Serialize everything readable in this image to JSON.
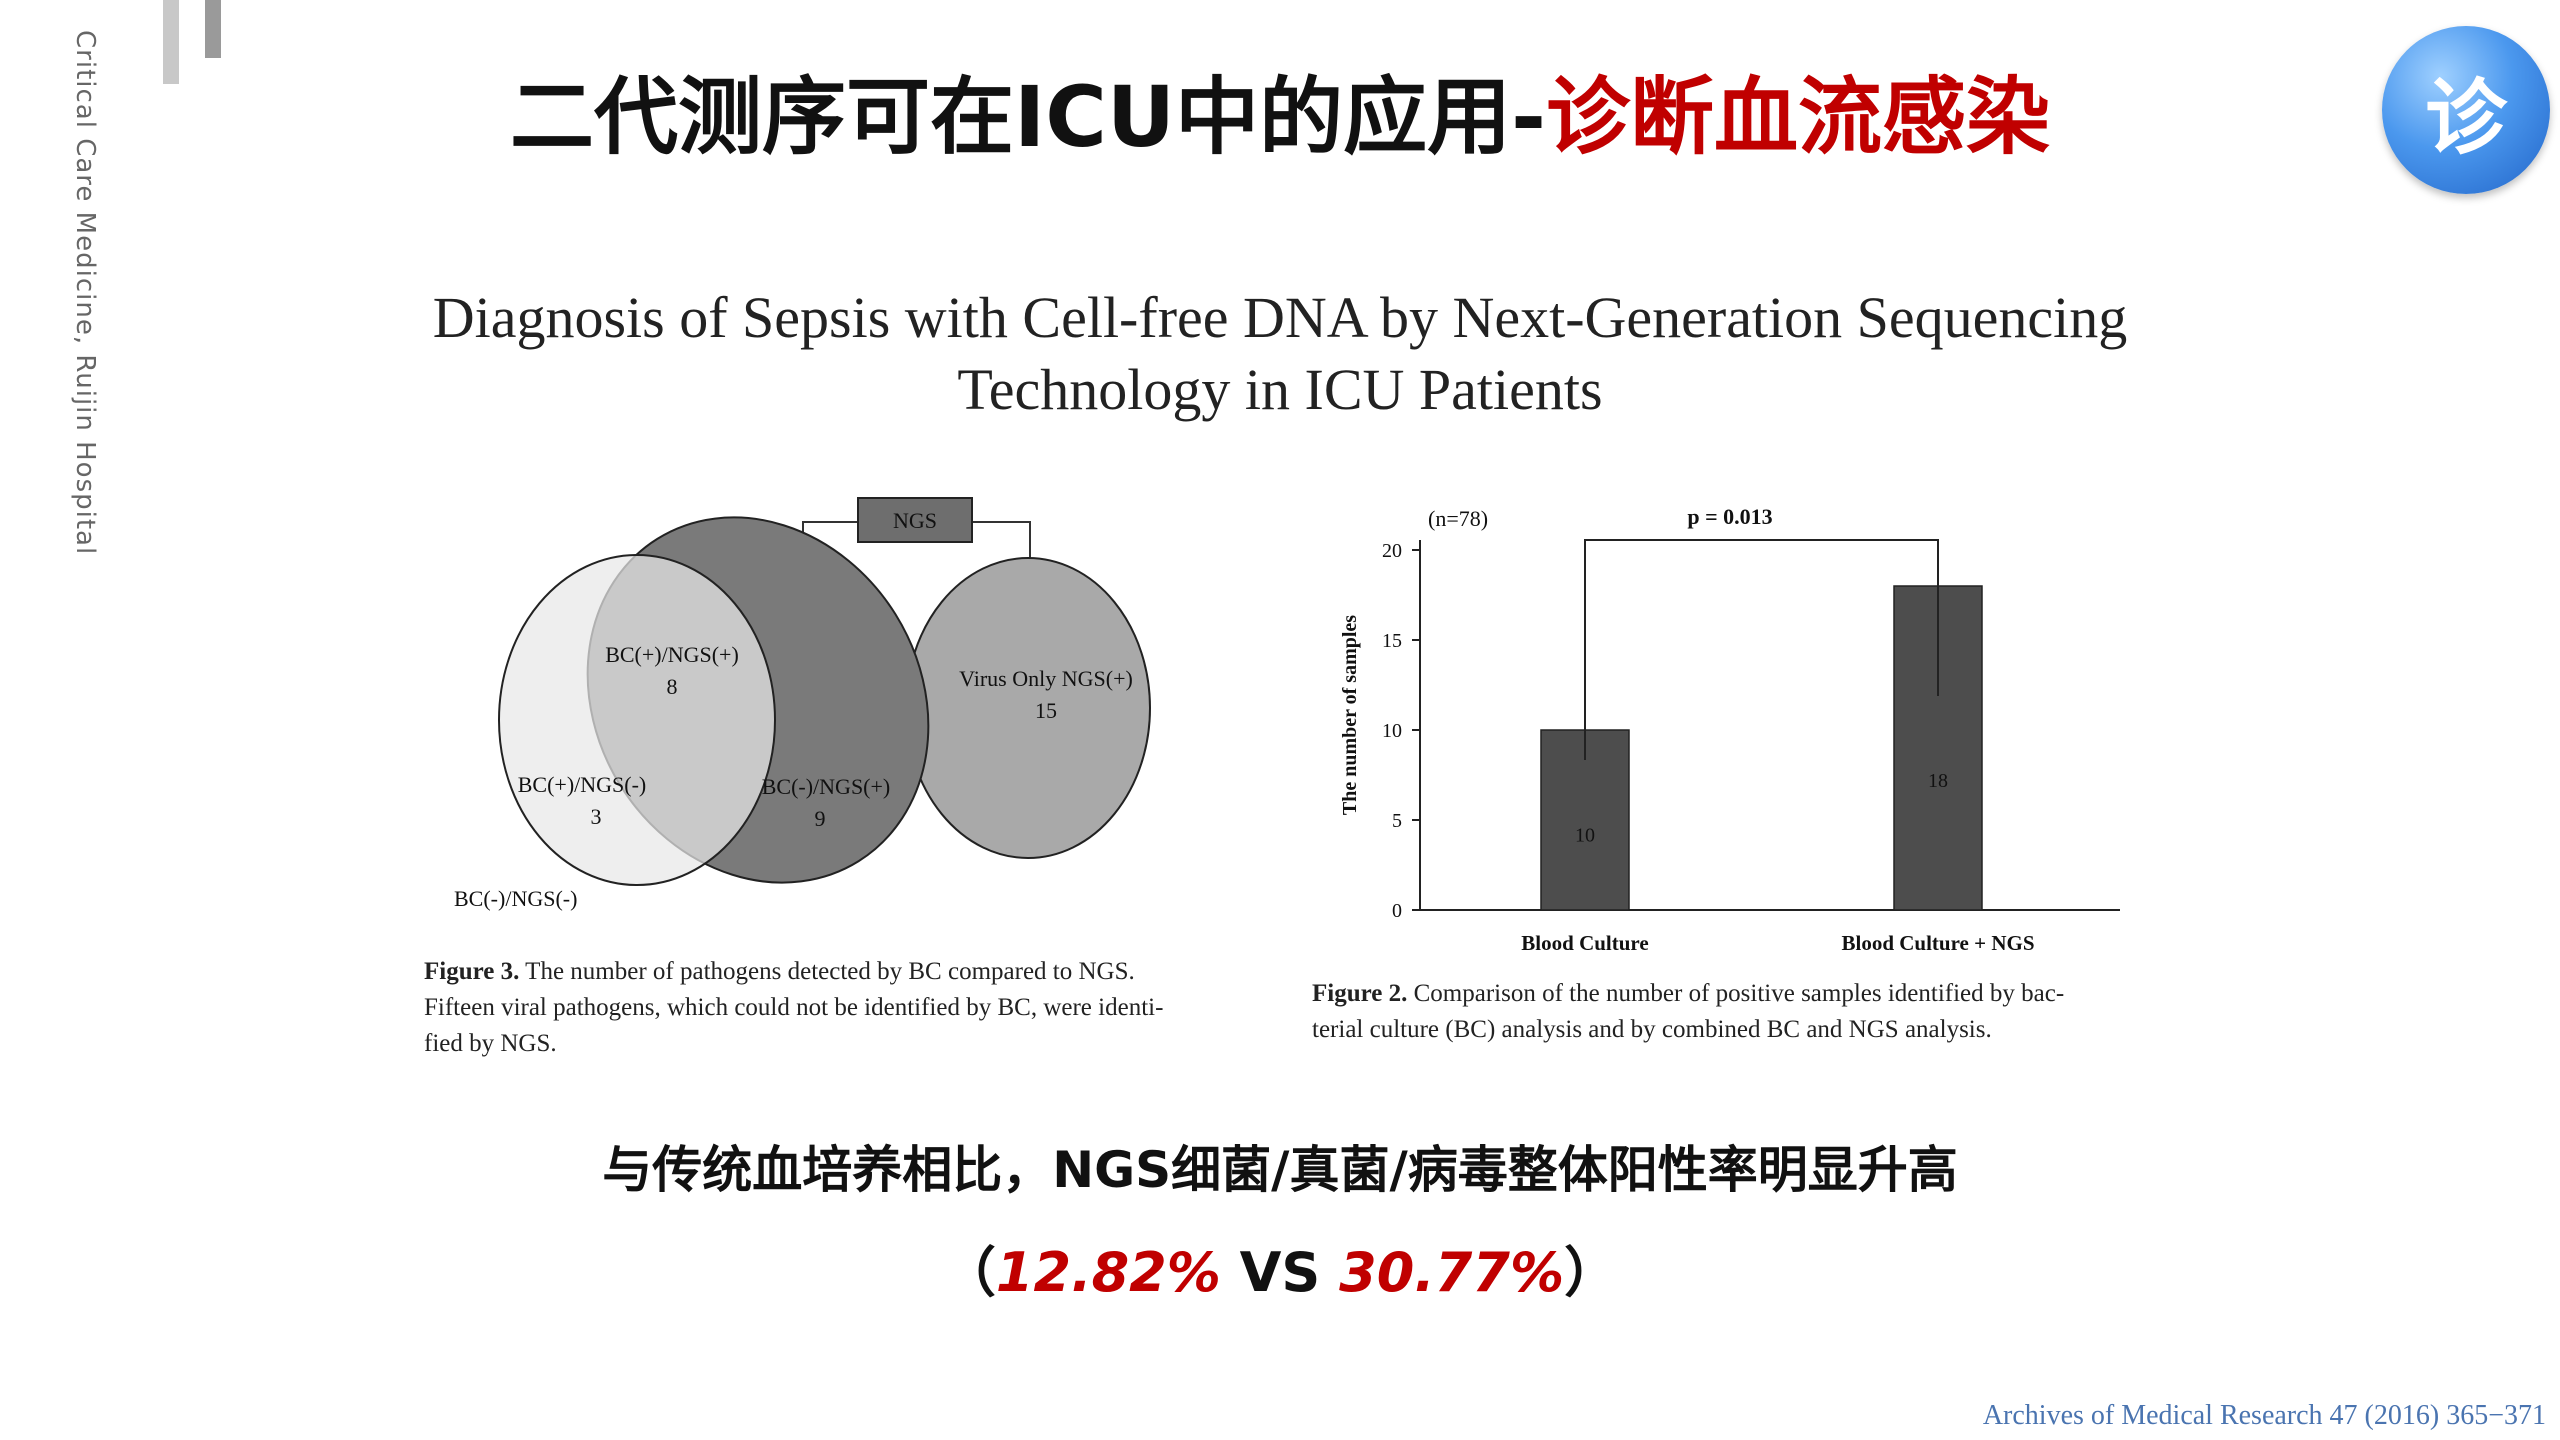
{
  "side_label": "Critical Care Medicine, Ruijin Hospital",
  "title": {
    "main": "二代测序可在ICU中的应用-",
    "highlight": "诊断血流感染"
  },
  "badge": {
    "char": "诊",
    "icon": "diagnosis-badge-icon"
  },
  "paper_title": {
    "line1": "Diagnosis of Sepsis with Cell-free DNA by Next-Generation Sequencing",
    "line2": "Technology in ICU Patients"
  },
  "venn": {
    "top_box": "NGS",
    "regions": [
      {
        "label": "BC(+)/NGS(+)",
        "count": "8"
      },
      {
        "label": "BC(+)/NGS(-)",
        "count": "3"
      },
      {
        "label": "BC(-)/NGS(+)",
        "count": "9"
      },
      {
        "label": "Virus  Only NGS(+)",
        "count": "15"
      }
    ],
    "outside_label": "BC(-)/NGS(-)",
    "caption": {
      "prefix": "Figure 3.",
      "lines": [
        " The number of pathogens detected by BC compared to NGS.",
        "Fifteen viral pathogens, which could not be identified by BC, were identi-",
        "fied by NGS."
      ]
    }
  },
  "chart_data": {
    "type": "bar",
    "n_label": "(n=78)",
    "p_label": "p = 0.013",
    "ylabel": "The number of samples",
    "categories": [
      "Blood Culture",
      "Blood Culture + NGS"
    ],
    "values": [
      10,
      18
    ],
    "bar_labels": [
      "10",
      "18"
    ],
    "ylim": [
      0,
      20
    ],
    "yticks": [
      "0",
      "5",
      "10",
      "15",
      "20"
    ],
    "bar_color": "#4d4d4d",
    "caption": {
      "prefix": "Figure 2.",
      "lines": [
        " Comparison of the number of positive samples identified by bac-",
        "terial culture (BC) analysis and by combined BC and NGS analysis."
      ]
    }
  },
  "summary": "与传统血培养相比，NGS细菌/真菌/病毒整体阳性率明显升高",
  "stats": {
    "open": "（",
    "pct1": "12.82%",
    "vs": " VS ",
    "pct2": "30.77%",
    "close": "）"
  },
  "citation": "Archives of Medical Research 47 (2016) 365−371",
  "colors": {
    "accent_red": "#c00000",
    "badge_blue": "#3f8ee6",
    "citation_blue": "#4a74b0"
  }
}
